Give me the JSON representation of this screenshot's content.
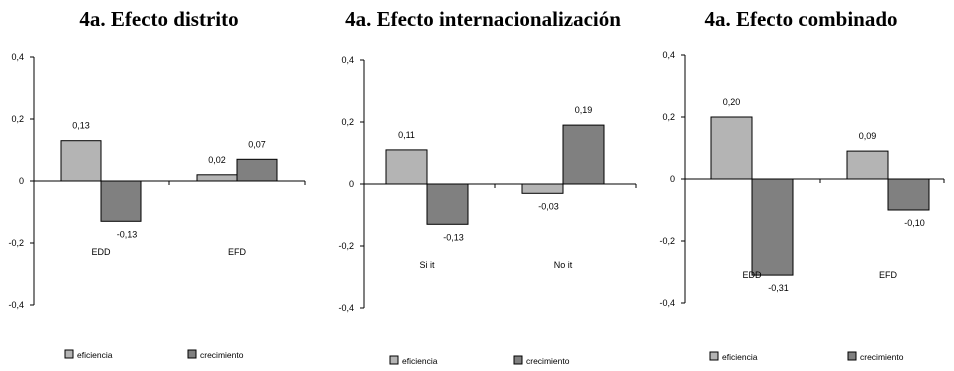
{
  "chart_data": [
    {
      "type": "bar",
      "title": "4a. Efecto distrito",
      "categories": [
        "EDD",
        "EFD"
      ],
      "series": [
        {
          "name": "eficiencia",
          "values": [
            0.13,
            0.02
          ],
          "color": "#b4b4b4"
        },
        {
          "name": "crecimiento",
          "values": [
            -0.13,
            0.07
          ],
          "color": "#808080"
        }
      ],
      "value_labels": [
        [
          "0,13",
          "0,02"
        ],
        [
          "-0,13",
          "0,07"
        ]
      ],
      "ylim": [
        -0.4,
        0.4
      ],
      "yticks": [
        0.4,
        0.2,
        0,
        -0.2,
        -0.4
      ],
      "ytick_labels": [
        "0,4",
        "0,2",
        "0",
        "-0,2",
        "-0,4"
      ],
      "legend": "bottom",
      "grid": false
    },
    {
      "type": "bar",
      "title": "4a. Efecto internacionalización",
      "categories": [
        "Si it",
        "No it"
      ],
      "series": [
        {
          "name": "eficiencia",
          "values": [
            0.11,
            -0.03
          ],
          "color": "#b4b4b4"
        },
        {
          "name": "crecimiento",
          "values": [
            -0.13,
            0.19
          ],
          "color": "#808080"
        }
      ],
      "value_labels": [
        [
          "0,11",
          "-0,03"
        ],
        [
          "-0,13",
          "0,19"
        ]
      ],
      "ylim": [
        -0.4,
        0.4
      ],
      "yticks": [
        0.4,
        0.2,
        0,
        -0.2,
        -0.4
      ],
      "ytick_labels": [
        "0,4",
        "0,2",
        "0",
        "-0,2",
        "-0,4"
      ],
      "legend": "bottom",
      "grid": false
    },
    {
      "type": "bar",
      "title": "4a. Efecto combinado",
      "categories": [
        "EDD",
        "EFD"
      ],
      "series": [
        {
          "name": "eficiencia",
          "values": [
            0.2,
            0.09
          ],
          "color": "#b4b4b4"
        },
        {
          "name": "crecimiento",
          "values": [
            -0.31,
            -0.1
          ],
          "color": "#808080"
        }
      ],
      "value_labels": [
        [
          "0,20",
          "0,09"
        ],
        [
          "-0,31",
          "-0,10"
        ]
      ],
      "ylim": [
        -0.4,
        0.4
      ],
      "yticks": [
        0.4,
        0.2,
        0,
        -0.2,
        -0.4
      ],
      "ytick_labels": [
        "0,4",
        "0,2",
        "0",
        "-0,2",
        "-0,4"
      ],
      "legend": "bottom",
      "grid": false
    }
  ]
}
